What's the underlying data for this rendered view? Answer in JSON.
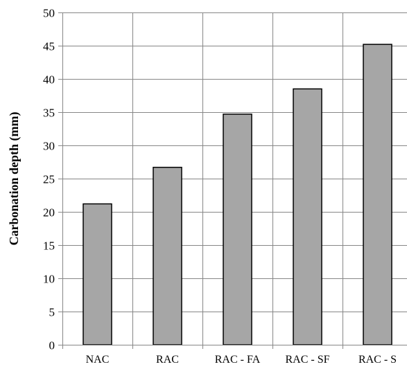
{
  "chart_data": {
    "type": "bar",
    "categories": [
      "NAC",
      "RAC",
      "RAC - FA",
      "RAC - SF",
      "RAC - S"
    ],
    "values": [
      21.2,
      26.7,
      34.7,
      38.5,
      45.2
    ],
    "title": "",
    "xlabel": "",
    "ylabel": "Carbonation depth (mm)",
    "ylim": [
      0,
      50
    ],
    "yticks": [
      0,
      5,
      10,
      15,
      20,
      25,
      30,
      35,
      40,
      45,
      50
    ],
    "grid": true,
    "legend": "none",
    "colors": {
      "bar_fill": "#a6a6a6",
      "bar_stroke": "#000000",
      "grid": "#868686",
      "axis": "#868686"
    }
  }
}
